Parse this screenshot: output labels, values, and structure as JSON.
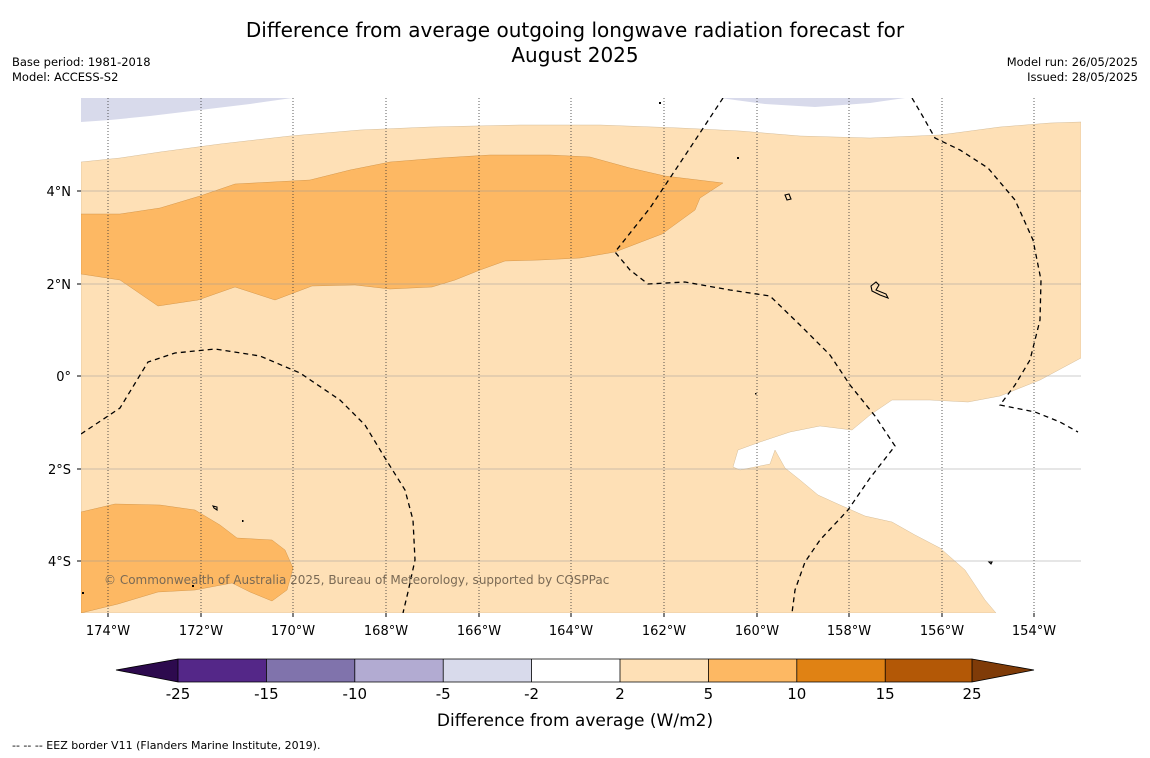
{
  "title_line1": "Difference from average outgoing longwave radiation forecast for",
  "title_line2": "August 2025",
  "base_period": "Base period: 1981-2018",
  "model": "Model: ACCESS-S2",
  "model_run": "Model run: 26/05/2025",
  "issued": "Issued: 28/05/2025",
  "copyright": "© Commonwealth of Australia 2025, Bureau of Meteorology, supported by COSPPac",
  "footer_note": "--  --  -- EEZ border V11 (Flanders Marine Institute, 2019).",
  "map": {
    "lon_ticks": [
      "174°W",
      "172°W",
      "170°W",
      "168°W",
      "166°W",
      "164°W",
      "162°W",
      "160°W",
      "158°W",
      "156°W",
      "154°W"
    ],
    "lat_ticks": [
      "4°N",
      "2°N",
      "0°",
      "2°S",
      "4°S"
    ]
  },
  "colorbar": {
    "title": "Difference from average (W/m2)",
    "labels": [
      "-25",
      "-15",
      "-10",
      "-5",
      "-2",
      "2",
      "5",
      "10",
      "15",
      "25"
    ],
    "colors": {
      "below": "#2d0a4e",
      "c1": "#542788",
      "c2": "#8073ac",
      "c3": "#b2abd2",
      "c4": "#d8daeb",
      "c5": "#ffffff",
      "c6": "#fee0b6",
      "c7": "#fdb863",
      "c8": "#e08214",
      "c9": "#b35806",
      "above": "#7f3b08"
    }
  }
}
